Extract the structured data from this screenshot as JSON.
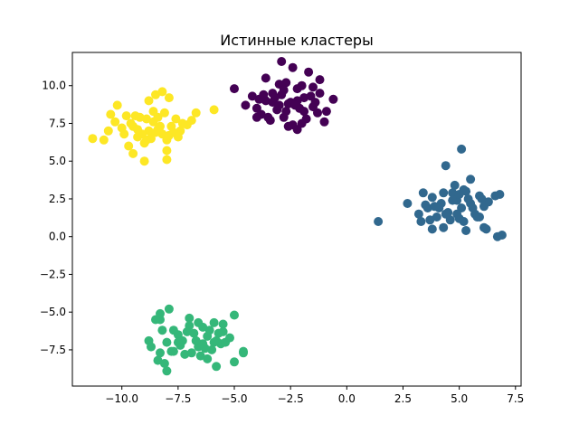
{
  "chart_data": {
    "type": "scatter",
    "title": "Истинные кластеры",
    "xlabel": "",
    "ylabel": "",
    "xlim": [
      -12.2,
      7.75
    ],
    "ylim": [
      -9.9,
      12.2
    ],
    "xticks": [
      -10.0,
      -7.5,
      -5.0,
      -2.5,
      0.0,
      2.5,
      5.0,
      7.5
    ],
    "yticks": [
      -7.5,
      -5.0,
      -2.5,
      0.0,
      2.5,
      5.0,
      7.5,
      10.0
    ],
    "xtick_labels": [
      "−10.0",
      "−7.5",
      "−5.0",
      "−2.5",
      "0.0",
      "2.5",
      "5.0",
      "7.5"
    ],
    "ytick_labels": [
      "−7.5",
      "−5.0",
      "−2.5",
      "0.0",
      "2.5",
      "5.0",
      "7.5",
      "10.0"
    ],
    "grid": false,
    "legend": false,
    "colors": {
      "cluster_0": "#440154",
      "cluster_1": "#31688e",
      "cluster_2": "#35b779",
      "cluster_3": "#fde725"
    },
    "series": [
      {
        "color": "#440154",
        "points": [
          [
            -4.0,
            8.5
          ],
          [
            -3.6,
            9.0
          ],
          [
            -3.3,
            9.5
          ],
          [
            -2.9,
            9.4
          ],
          [
            -2.6,
            8.8
          ],
          [
            -2.1,
            8.5
          ],
          [
            -1.9,
            9.2
          ],
          [
            -1.5,
            8.6
          ],
          [
            -1.2,
            9.5
          ],
          [
            -0.6,
            9.1
          ],
          [
            -4.5,
            8.7
          ],
          [
            -3.8,
            8.1
          ],
          [
            -3.5,
            7.9
          ],
          [
            -3.1,
            8.4
          ],
          [
            -2.8,
            7.9
          ],
          [
            -2.4,
            7.4
          ],
          [
            -2.2,
            7.1
          ],
          [
            -1.8,
            7.8
          ],
          [
            -1.3,
            8.2
          ],
          [
            -1.0,
            7.6
          ],
          [
            -3.9,
            9.1
          ],
          [
            -3.0,
            10.1
          ],
          [
            -2.7,
            10.2
          ],
          [
            -2.4,
            11.2
          ],
          [
            -1.7,
            10.9
          ],
          [
            -2.9,
            11.6
          ],
          [
            -3.6,
            10.5
          ],
          [
            -2.2,
            9.8
          ],
          [
            -1.5,
            9.9
          ],
          [
            -1.2,
            10.4
          ],
          [
            -3.3,
            8.9
          ],
          [
            -3.0,
            8.7
          ],
          [
            -2.7,
            8.3
          ],
          [
            -2.5,
            8.9
          ],
          [
            -2.2,
            9.0
          ],
          [
            -1.9,
            8.3
          ],
          [
            -1.6,
            9.3
          ],
          [
            -3.4,
            7.7
          ],
          [
            -2.6,
            7.3
          ],
          [
            -2.0,
            7.5
          ],
          [
            -5.0,
            9.8
          ],
          [
            -4.2,
            9.3
          ],
          [
            -4.0,
            7.9
          ],
          [
            -3.7,
            9.4
          ],
          [
            -2.8,
            9.7
          ],
          [
            -2.0,
            10.0
          ],
          [
            -1.4,
            8.9
          ],
          [
            -0.9,
            8.3
          ],
          [
            -3.2,
            9.2
          ],
          [
            -2.3,
            8.7
          ]
        ]
      },
      {
        "color": "#31688e",
        "points": [
          [
            1.4,
            1.0
          ],
          [
            2.7,
            2.2
          ],
          [
            3.2,
            1.5
          ],
          [
            3.4,
            2.9
          ],
          [
            3.6,
            1.9
          ],
          [
            3.8,
            2.6
          ],
          [
            4.0,
            1.3
          ],
          [
            4.2,
            2.2
          ],
          [
            4.5,
            1.6
          ],
          [
            4.7,
            2.9
          ],
          [
            4.9,
            2.4
          ],
          [
            5.1,
            1.9
          ],
          [
            5.3,
            3.0
          ],
          [
            5.5,
            2.2
          ],
          [
            5.7,
            1.5
          ],
          [
            5.9,
            2.7
          ],
          [
            6.1,
            2.0
          ],
          [
            6.3,
            2.3
          ],
          [
            6.6,
            2.7
          ],
          [
            6.8,
            2.8
          ],
          [
            4.4,
            4.7
          ],
          [
            5.1,
            5.8
          ],
          [
            5.5,
            3.8
          ],
          [
            4.8,
            3.4
          ],
          [
            4.3,
            0.6
          ],
          [
            3.8,
            0.5
          ],
          [
            5.3,
            0.4
          ],
          [
            6.1,
            0.6
          ],
          [
            6.9,
            0.1
          ],
          [
            6.7,
            0.0
          ],
          [
            3.3,
            1.0
          ],
          [
            3.7,
            1.1
          ],
          [
            4.1,
            1.9
          ],
          [
            4.6,
            1.1
          ],
          [
            5.0,
            1.2
          ],
          [
            5.4,
            2.5
          ],
          [
            5.8,
            1.3
          ],
          [
            5.9,
            1.3
          ],
          [
            6.2,
            0.5
          ],
          [
            5.2,
            3.1
          ],
          [
            3.5,
            2.1
          ],
          [
            3.9,
            2.0
          ],
          [
            4.3,
            2.9
          ],
          [
            4.7,
            2.4
          ],
          [
            5.0,
            2.8
          ],
          [
            5.6,
            1.9
          ],
          [
            6.0,
            2.5
          ],
          [
            4.4,
            1.5
          ],
          [
            4.9,
            1.5
          ],
          [
            5.2,
            1.0
          ]
        ]
      },
      {
        "color": "#35b779",
        "points": [
          [
            -8.8,
            -6.9
          ],
          [
            -8.7,
            -7.3
          ],
          [
            -8.3,
            -5.5
          ],
          [
            -8.2,
            -6.2
          ],
          [
            -8.0,
            -7.0
          ],
          [
            -7.8,
            -7.6
          ],
          [
            -7.5,
            -6.5
          ],
          [
            -7.3,
            -6.9
          ],
          [
            -7.0,
            -5.9
          ],
          [
            -6.8,
            -6.4
          ],
          [
            -6.6,
            -7.3
          ],
          [
            -6.4,
            -7.1
          ],
          [
            -6.2,
            -6.6
          ],
          [
            -6.0,
            -7.5
          ],
          [
            -5.8,
            -6.9
          ],
          [
            -5.6,
            -7.1
          ],
          [
            -5.4,
            -7.0
          ],
          [
            -5.2,
            -6.7
          ],
          [
            -5.0,
            -5.2
          ],
          [
            -4.6,
            -7.6
          ],
          [
            -7.9,
            -4.8
          ],
          [
            -8.3,
            -5.1
          ],
          [
            -7.0,
            -5.4
          ],
          [
            -6.6,
            -5.7
          ],
          [
            -5.9,
            -5.7
          ],
          [
            -5.5,
            -5.8
          ],
          [
            -7.2,
            -7.8
          ],
          [
            -7.7,
            -7.6
          ],
          [
            -8.1,
            -8.4
          ],
          [
            -8.0,
            -8.9
          ],
          [
            -6.5,
            -7.9
          ],
          [
            -6.2,
            -8.1
          ],
          [
            -5.8,
            -8.6
          ],
          [
            -5.0,
            -8.3
          ],
          [
            -4.6,
            -7.7
          ],
          [
            -8.5,
            -5.5
          ],
          [
            -7.7,
            -6.2
          ],
          [
            -7.1,
            -6.3
          ],
          [
            -6.7,
            -6.9
          ],
          [
            -6.1,
            -6.2
          ],
          [
            -5.7,
            -6.4
          ],
          [
            -5.5,
            -6.3
          ],
          [
            -7.4,
            -7.2
          ],
          [
            -6.9,
            -7.7
          ],
          [
            -6.3,
            -7.4
          ],
          [
            -5.9,
            -7.0
          ],
          [
            -8.3,
            -7.7
          ],
          [
            -8.4,
            -8.2
          ],
          [
            -7.5,
            -7.0
          ],
          [
            -6.4,
            -6.0
          ]
        ]
      },
      {
        "color": "#fde725",
        "points": [
          [
            -11.3,
            6.5
          ],
          [
            -10.8,
            6.4
          ],
          [
            -10.6,
            7.0
          ],
          [
            -10.3,
            7.6
          ],
          [
            -10.5,
            8.1
          ],
          [
            -10.2,
            8.7
          ],
          [
            -9.8,
            8.0
          ],
          [
            -9.5,
            7.3
          ],
          [
            -9.3,
            6.6
          ],
          [
            -9.0,
            6.2
          ],
          [
            -8.8,
            7.0
          ],
          [
            -8.6,
            7.6
          ],
          [
            -8.4,
            7.9
          ],
          [
            -8.2,
            6.8
          ],
          [
            -8.0,
            6.4
          ],
          [
            -7.8,
            7.3
          ],
          [
            -7.6,
            7.8
          ],
          [
            -7.4,
            7.0
          ],
          [
            -7.1,
            7.4
          ],
          [
            -6.9,
            7.7
          ],
          [
            -8.8,
            9.0
          ],
          [
            -8.5,
            9.4
          ],
          [
            -8.2,
            9.6
          ],
          [
            -7.9,
            9.2
          ],
          [
            -9.0,
            5.0
          ],
          [
            -8.0,
            5.1
          ],
          [
            -8.0,
            5.7
          ],
          [
            -9.5,
            5.5
          ],
          [
            -5.9,
            8.4
          ],
          [
            -6.7,
            8.2
          ],
          [
            -9.7,
            6.0
          ],
          [
            -9.1,
            6.8
          ],
          [
            -8.9,
            7.8
          ],
          [
            -8.7,
            6.5
          ],
          [
            -8.5,
            6.9
          ],
          [
            -8.3,
            7.3
          ],
          [
            -8.1,
            8.2
          ],
          [
            -7.9,
            6.7
          ],
          [
            -7.7,
            6.9
          ],
          [
            -7.3,
            7.5
          ],
          [
            -10.0,
            7.2
          ],
          [
            -9.6,
            7.5
          ],
          [
            -9.4,
            8.0
          ],
          [
            -9.2,
            7.9
          ],
          [
            -9.9,
            6.8
          ],
          [
            -8.6,
            8.3
          ],
          [
            -7.5,
            6.6
          ],
          [
            -8.9,
            6.4
          ],
          [
            -9.3,
            7.1
          ],
          [
            -8.4,
            7.1
          ]
        ]
      }
    ]
  }
}
